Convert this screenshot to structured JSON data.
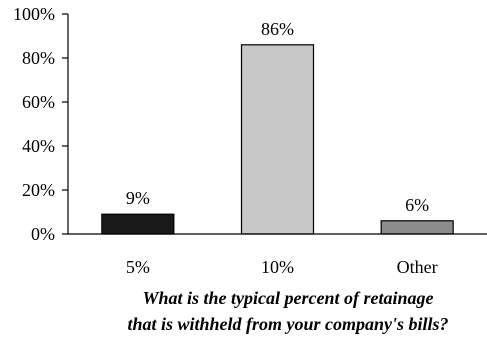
{
  "chart_data": {
    "type": "bar",
    "categories": [
      "5%",
      "10%",
      "Other"
    ],
    "values": [
      9,
      86,
      6
    ],
    "value_labels": [
      "9%",
      "86%",
      "6%"
    ],
    "bar_colors": [
      "#1a1a1a",
      "#c8c8c8",
      "#8c8c8c"
    ],
    "ylim": [
      0,
      100
    ],
    "yticks": [
      0,
      20,
      40,
      60,
      80,
      100
    ],
    "ytick_labels": [
      "0%",
      "20%",
      "40%",
      "60%",
      "80%",
      "100%"
    ],
    "grid": false,
    "legend": "none",
    "title": "",
    "ylabel": "",
    "xlabel_lines": [
      "What is the typical percent of retainage",
      "that is withheld from your company's bills?"
    ]
  }
}
